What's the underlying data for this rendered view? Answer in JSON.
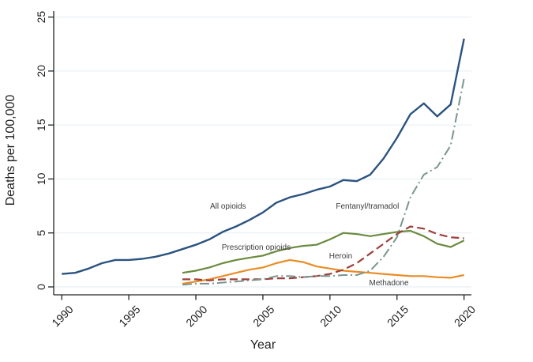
{
  "figure": {
    "background": "#ffffff",
    "axis_color": "#232323",
    "gridline_color": "#e2eef1",
    "tick_label_color": "#1f1f1f",
    "annotation_color": "#3d3d3d"
  },
  "chart_data": {
    "type": "line",
    "title": "",
    "xlabel": "Year",
    "ylabel": "Deaths per 100,000",
    "xlim": [
      1989.4,
      2020.55
    ],
    "ylim": [
      0,
      25
    ],
    "xticks": [
      1990,
      1995,
      2000,
      2005,
      2010,
      2015,
      2020
    ],
    "yticks": [
      0,
      5,
      10,
      15,
      20,
      25
    ],
    "grid": "horizontal",
    "legend": "none",
    "series": [
      {
        "name": "Prescription opioids",
        "color": "#6b8a3e",
        "dash": "solid",
        "width": 2.2,
        "years": [
          1999,
          2000,
          2001,
          2002,
          2003,
          2004,
          2005,
          2006,
          2007,
          2008,
          2009,
          2010,
          2011,
          2012,
          2013,
          2014,
          2015,
          2016,
          2017,
          2018,
          2019,
          2020
        ],
        "values": [
          1.3,
          1.5,
          1.8,
          2.2,
          2.5,
          2.7,
          2.9,
          3.3,
          3.6,
          3.8,
          3.9,
          4.4,
          5.0,
          4.9,
          4.7,
          4.9,
          5.1,
          5.2,
          4.7,
          4.0,
          3.7,
          4.3
        ]
      },
      {
        "name": "Methadone",
        "color": "#e98c26",
        "dash": "solid",
        "width": 2.2,
        "years": [
          1999,
          2000,
          2001,
          2002,
          2003,
          2004,
          2005,
          2006,
          2007,
          2008,
          2009,
          2010,
          2011,
          2012,
          2013,
          2014,
          2015,
          2016,
          2017,
          2018,
          2019,
          2020
        ],
        "values": [
          0.3,
          0.5,
          0.7,
          1.0,
          1.3,
          1.6,
          1.8,
          2.2,
          2.5,
          2.3,
          1.9,
          1.7,
          1.5,
          1.4,
          1.3,
          1.2,
          1.1,
          1.0,
          1.0,
          0.9,
          0.85,
          1.1
        ]
      },
      {
        "name": "Heroin",
        "color": "#9d3f3a",
        "dash": "dash",
        "width": 2.2,
        "years": [
          1999,
          2000,
          2001,
          2002,
          2003,
          2004,
          2005,
          2006,
          2007,
          2008,
          2009,
          2010,
          2011,
          2012,
          2013,
          2014,
          2015,
          2016,
          2017,
          2018,
          2019,
          2020
        ],
        "values": [
          0.7,
          0.7,
          0.6,
          0.7,
          0.7,
          0.7,
          0.7,
          0.8,
          0.8,
          0.9,
          1.0,
          1.2,
          1.6,
          2.2,
          3.1,
          4.0,
          4.9,
          5.6,
          5.4,
          4.9,
          4.6,
          4.5
        ]
      },
      {
        "name": "Fentanyl/tramadol",
        "color": "#7a958d",
        "dash": "dashdot",
        "width": 2.0,
        "years": [
          1999,
          2000,
          2001,
          2002,
          2003,
          2004,
          2005,
          2006,
          2007,
          2008,
          2009,
          2010,
          2011,
          2012,
          2013,
          2014,
          2015,
          2016,
          2017,
          2018,
          2019,
          2020
        ],
        "values": [
          0.2,
          0.3,
          0.3,
          0.4,
          0.5,
          0.6,
          0.7,
          1.0,
          1.0,
          0.9,
          1.0,
          1.0,
          1.1,
          1.1,
          1.5,
          2.8,
          4.6,
          8.3,
          10.4,
          11.1,
          13.1,
          19.3
        ]
      },
      {
        "name": "All opioids",
        "color": "#2c5380",
        "dash": "solid",
        "width": 2.4,
        "years": [
          1990,
          1991,
          1992,
          1993,
          1994,
          1995,
          1996,
          1997,
          1998,
          1999,
          2000,
          2001,
          2002,
          2003,
          2004,
          2005,
          2006,
          2007,
          2008,
          2009,
          2010,
          2011,
          2012,
          2013,
          2014,
          2015,
          2016,
          2017,
          2018,
          2019,
          2020
        ],
        "values": [
          1.2,
          1.3,
          1.7,
          2.2,
          2.5,
          2.5,
          2.6,
          2.8,
          3.1,
          3.5,
          3.9,
          4.4,
          5.1,
          5.6,
          6.2,
          6.9,
          7.8,
          8.3,
          8.6,
          9.0,
          9.3,
          9.9,
          9.8,
          10.4,
          11.9,
          13.8,
          16.0,
          17.0,
          15.8,
          16.9,
          23.0
        ]
      }
    ],
    "annotations": [
      {
        "text": "All opioids",
        "year": 2002.4,
        "value": 7.5
      },
      {
        "text": "Fentanyl/tramadol",
        "year": 2012.8,
        "value": 7.5
      },
      {
        "text": "Prescription opioids",
        "year": 2004.5,
        "value": 3.7
      },
      {
        "text": "Heroin",
        "year": 2010.8,
        "value": 2.9
      },
      {
        "text": "Methadone",
        "year": 2014.4,
        "value": 0.4
      }
    ]
  }
}
